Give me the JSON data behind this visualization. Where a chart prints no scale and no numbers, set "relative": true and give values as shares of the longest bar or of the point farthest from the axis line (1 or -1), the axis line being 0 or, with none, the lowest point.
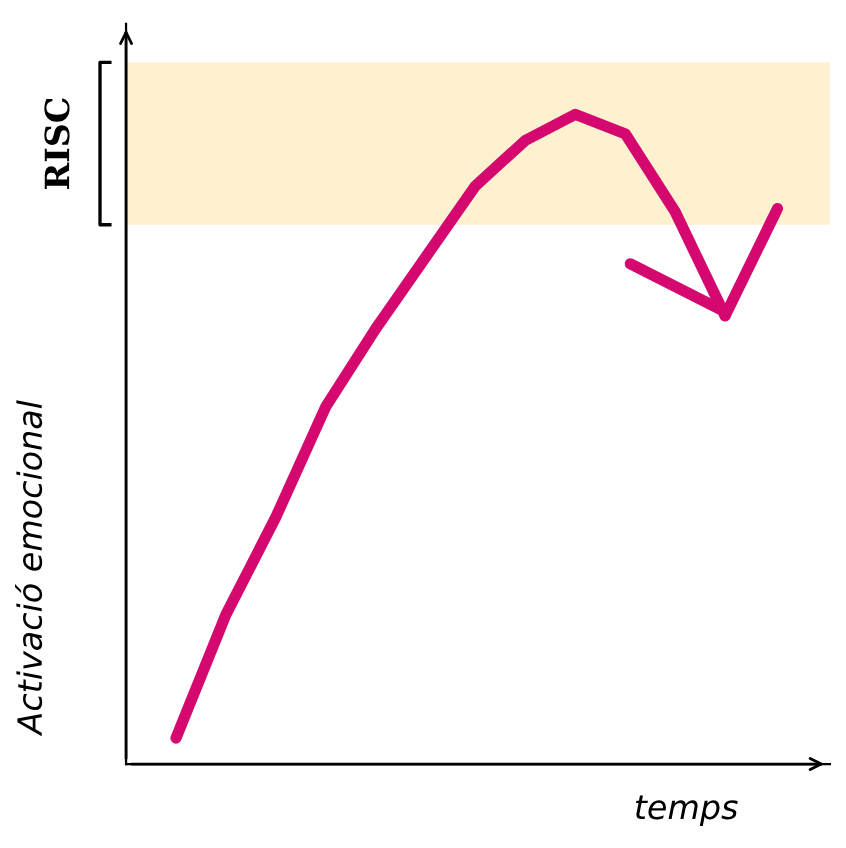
{
  "chart_data": {
    "type": "line",
    "relative": true,
    "xlabel": "temps",
    "ylabel": "Activació emocional",
    "categories": [
      null,
      null,
      null,
      null,
      null,
      null,
      null,
      null,
      null,
      null,
      null,
      null
    ],
    "series": [
      {
        "color": "#d4086e",
        "values": [
          0.04,
          0.23,
          0.38,
          0.55,
          0.67,
          0.78,
          0.89,
          0.96,
          1.0,
          0.97,
          0.85,
          0.69
        ]
      }
    ],
    "bands": [
      {
        "axis": "y",
        "from": 0.83,
        "to": 1.08,
        "label": "RISC",
        "color": "#fdf1d0"
      }
    ],
    "marker": "none",
    "line_style": "solid"
  }
}
